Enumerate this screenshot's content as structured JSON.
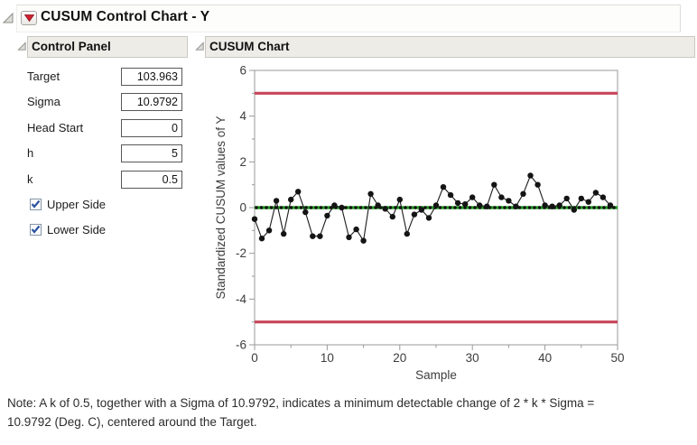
{
  "window": {
    "title": "CUSUM Control Chart - Y"
  },
  "icons": {
    "disclosure_open_icon": "gray open-triangle (section collapse control)",
    "red_triangle_menu_icon": "red down-triangle options menu",
    "check_icon": "blue check mark"
  },
  "colors": {
    "limit_line": "#c84458",
    "center_line": "#25a125",
    "header_bg": "#edece7",
    "series": "#1b1b1b"
  },
  "control_panel": {
    "header": "Control Panel",
    "fields": [
      {
        "label": "Target",
        "value": "103.963"
      },
      {
        "label": "Sigma",
        "value": "10.9792"
      },
      {
        "label": "Head Start",
        "value": "0"
      },
      {
        "label": "h",
        "value": "5"
      },
      {
        "label": "k",
        "value": "0.5"
      }
    ],
    "checkboxes": [
      {
        "label": "Upper Side",
        "checked": true
      },
      {
        "label": "Lower Side",
        "checked": true
      }
    ]
  },
  "chart_panel": {
    "header": "CUSUM Chart"
  },
  "chart_data": {
    "type": "line",
    "title": "",
    "xlabel": "Sample",
    "ylabel": "Standardized CUSUM values of Y",
    "xlim": [
      0,
      50
    ],
    "ylim": [
      -6,
      6
    ],
    "x_ticks": [
      0,
      10,
      20,
      30,
      40,
      50
    ],
    "y_ticks": [
      -6,
      -4,
      -2,
      0,
      2,
      4,
      6
    ],
    "x_minor_step": 5,
    "y_minor_step": 1,
    "upper_limit": 5,
    "lower_limit": -5,
    "center_line": 0,
    "grid": false,
    "legend": "none",
    "x": [
      0,
      1,
      2,
      3,
      4,
      5,
      6,
      7,
      8,
      9,
      10,
      11,
      12,
      13,
      14,
      15,
      16,
      17,
      18,
      19,
      20,
      21,
      22,
      23,
      24,
      25,
      26,
      27,
      28,
      29,
      30,
      31,
      32,
      33,
      34,
      35,
      36,
      37,
      38,
      39,
      40,
      41,
      42,
      43,
      44,
      45,
      46,
      47,
      48,
      49
    ],
    "values": [
      -0.5,
      -1.35,
      -1.0,
      0.3,
      -1.15,
      0.35,
      0.7,
      -0.2,
      -1.25,
      -1.25,
      -0.35,
      0.1,
      0.0,
      -1.3,
      -0.95,
      -1.45,
      0.6,
      0.1,
      -0.05,
      -0.4,
      0.35,
      -1.15,
      -0.3,
      -0.1,
      -0.45,
      0.1,
      0.9,
      0.55,
      0.2,
      0.15,
      0.45,
      0.1,
      0.05,
      1.0,
      0.45,
      0.3,
      0.05,
      0.6,
      1.4,
      1.0,
      0.1,
      0.05,
      0.1,
      0.4,
      -0.1,
      0.4,
      0.25,
      0.65,
      0.45,
      0.1
    ]
  },
  "note": {
    "line1": "Note: A k of 0.5, together with a Sigma of 10.9792, indicates a minimum detectable change of 2 * k * Sigma =",
    "line2": "10.9792 (Deg. C), centered around the Target."
  }
}
